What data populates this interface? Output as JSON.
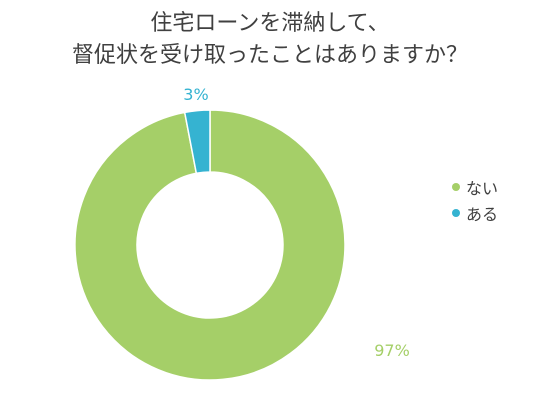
{
  "chart_data": {
    "type": "pie",
    "donut": true,
    "title_lines": [
      "住宅ローンを滞納して、",
      "督促状を受け取ったことはありますか？"
    ],
    "categories": [
      "ない",
      "ある"
    ],
    "values": [
      97,
      3
    ],
    "data_labels": [
      "97%",
      "3%"
    ],
    "colors": [
      "#a5cf68",
      "#35b3d1"
    ],
    "legend_position": "right"
  }
}
